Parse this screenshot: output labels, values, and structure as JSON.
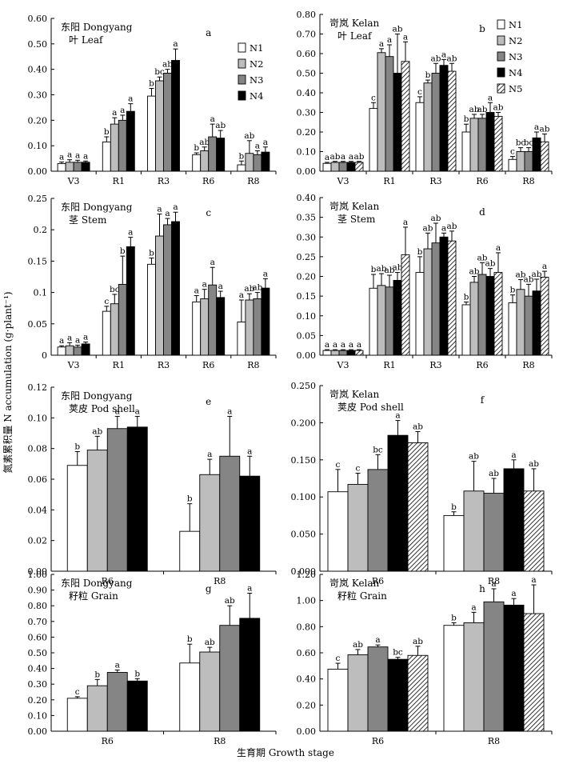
{
  "figure": {
    "ylabel": "氮素累积量 N accumulation (g·plant⁻¹)",
    "xlabel": "生育期 Growth stage"
  },
  "colors": {
    "N1": "#ffffff",
    "N2": "#bdbdbd",
    "N3": "#858585",
    "N4": "#000000",
    "N5": "hatch"
  },
  "chart_data": [
    {
      "id": "a",
      "type": "bar",
      "letter": "a",
      "title": [
        "东阳 Dongyang",
        "叶 Leaf"
      ],
      "categories": [
        "V3",
        "R1",
        "R3",
        "R6",
        "R8"
      ],
      "ylim": [
        0,
        0.6
      ],
      "yticks": [
        "0.00",
        "0.10",
        "0.20",
        "0.30",
        "0.40",
        "0.50",
        "0.60"
      ],
      "legend": [
        "N1",
        "N2",
        "N3",
        "N4"
      ],
      "series": [
        {
          "name": "N1",
          "values": [
            0.03,
            0.115,
            0.295,
            0.065,
            0.025
          ],
          "errors": [
            0.006,
            0.02,
            0.03,
            0.007,
            0.015
          ],
          "sig": [
            "a",
            "b",
            "b",
            "b",
            "b"
          ]
        },
        {
          "name": "N2",
          "values": [
            0.035,
            0.185,
            0.355,
            0.08,
            0.07
          ],
          "errors": [
            0.01,
            0.025,
            0.015,
            0.015,
            0.05
          ],
          "sig": [
            "a",
            "a",
            "bc",
            "ab",
            "ab"
          ]
        },
        {
          "name": "N3",
          "values": [
            0.035,
            0.2,
            0.385,
            0.135,
            0.065
          ],
          "errors": [
            0.008,
            0.02,
            0.015,
            0.05,
            0.015
          ],
          "sig": [
            "a",
            "a",
            "ab",
            "a",
            "a"
          ]
        },
        {
          "name": "N4",
          "values": [
            0.035,
            0.235,
            0.435,
            0.13,
            0.075
          ],
          "errors": [
            0.005,
            0.03,
            0.045,
            0.03,
            0.02
          ],
          "sig": [
            "a",
            "a",
            "a",
            "ab",
            "a"
          ]
        }
      ]
    },
    {
      "id": "b",
      "type": "bar",
      "letter": "b",
      "title": [
        "岢岚 Kelan",
        "叶 Leaf"
      ],
      "categories": [
        "V3",
        "R1",
        "R3",
        "R6",
        "R8"
      ],
      "ylim": [
        0,
        0.8
      ],
      "yticks": [
        "0.00",
        "0.10",
        "0.20",
        "0.30",
        "0.40",
        "0.50",
        "0.60",
        "0.70",
        "0.80"
      ],
      "legend": [
        "N1",
        "N2",
        "N3",
        "N4",
        "N5"
      ],
      "series": [
        {
          "name": "N1",
          "values": [
            0.04,
            0.32,
            0.35,
            0.2,
            0.06
          ],
          "errors": [
            0.005,
            0.03,
            0.03,
            0.04,
            0.015
          ],
          "sig": [
            "a",
            "c",
            "c",
            "b",
            "c"
          ]
        },
        {
          "name": "N2",
          "values": [
            0.045,
            0.605,
            0.45,
            0.27,
            0.1
          ],
          "errors": [
            0.005,
            0.02,
            0.015,
            0.02,
            0.02
          ],
          "sig": [
            "ab",
            "a",
            "b",
            "ab",
            "bc"
          ]
        },
        {
          "name": "N3",
          "values": [
            0.045,
            0.585,
            0.5,
            0.27,
            0.1
          ],
          "errors": [
            0.005,
            0.06,
            0.05,
            0.02,
            0.02
          ],
          "sig": [
            "a",
            "a",
            "ab",
            "ab",
            "bc"
          ]
        },
        {
          "name": "N4",
          "values": [
            0.045,
            0.5,
            0.54,
            0.3,
            0.17
          ],
          "errors": [
            0.005,
            0.2,
            0.03,
            0.05,
            0.03
          ],
          "sig": [
            "a",
            "ab",
            "a",
            "a",
            "a"
          ]
        },
        {
          "name": "N5",
          "values": [
            0.045,
            0.56,
            0.51,
            0.28,
            0.15
          ],
          "errors": [
            0.005,
            0.1,
            0.04,
            0.02,
            0.04
          ],
          "sig": [
            "ab",
            "a",
            "ab",
            "ab",
            "ab"
          ]
        }
      ]
    },
    {
      "id": "c",
      "type": "bar",
      "letter": "c",
      "title": [
        "东阳 Dongyang",
        "茎 Stem"
      ],
      "categories": [
        "V3",
        "R1",
        "R3",
        "R6",
        "R8"
      ],
      "ylim": [
        0,
        0.25
      ],
      "yticks": [
        "0",
        "0.05",
        "0.1",
        "0.15",
        "0.2",
        "0.25"
      ],
      "legend": [],
      "series": [
        {
          "name": "N1",
          "values": [
            0.013,
            0.07,
            0.145,
            0.085,
            0.053
          ],
          "errors": [
            0.002,
            0.008,
            0.01,
            0.01,
            0.035
          ],
          "sig": [
            "a",
            "c",
            "b",
            "a",
            "a"
          ]
        },
        {
          "name": "N2",
          "values": [
            0.015,
            0.082,
            0.19,
            0.09,
            0.088
          ],
          "errors": [
            0.005,
            0.015,
            0.035,
            0.015,
            0.01
          ],
          "sig": [
            "a",
            "bc",
            "a",
            "a",
            "ab"
          ]
        },
        {
          "name": "N3",
          "values": [
            0.013,
            0.113,
            0.208,
            0.112,
            0.09
          ],
          "errors": [
            0.003,
            0.045,
            0.01,
            0.028,
            0.01
          ],
          "sig": [
            "a",
            "b",
            "a",
            "a",
            "ab"
          ]
        },
        {
          "name": "N4",
          "values": [
            0.018,
            0.173,
            0.213,
            0.092,
            0.107
          ],
          "errors": [
            0.003,
            0.015,
            0.015,
            0.01,
            0.015
          ],
          "sig": [
            "a",
            "a",
            "a",
            "a",
            "a"
          ]
        }
      ]
    },
    {
      "id": "d",
      "type": "bar",
      "letter": "d",
      "title": [
        "岢岚 Kelan",
        "茎 Stem"
      ],
      "categories": [
        "V3",
        "R1",
        "R3",
        "R6",
        "R8"
      ],
      "ylim": [
        0,
        0.4
      ],
      "yticks": [
        "0.00",
        "0.05",
        "0.10",
        "0.15",
        "0.20",
        "0.25",
        "0.30",
        "0.35",
        "0.40"
      ],
      "legend": [],
      "series": [
        {
          "name": "N1",
          "values": [
            0.012,
            0.17,
            0.21,
            0.128,
            0.133
          ],
          "errors": [
            0.002,
            0.035,
            0.04,
            0.007,
            0.02
          ],
          "sig": [
            "a",
            "b",
            "b",
            "b",
            "b"
          ]
        },
        {
          "name": "N2",
          "values": [
            0.012,
            0.177,
            0.27,
            0.185,
            0.167
          ],
          "errors": [
            0.002,
            0.03,
            0.04,
            0.015,
            0.025
          ],
          "sig": [
            "a",
            "ab",
            "ab",
            "ab",
            "ab"
          ]
        },
        {
          "name": "N3",
          "values": [
            0.012,
            0.173,
            0.285,
            0.205,
            0.15
          ],
          "errors": [
            0.002,
            0.03,
            0.05,
            0.03,
            0.03
          ],
          "sig": [
            "a",
            "ab",
            "ab",
            "ab",
            "ab"
          ]
        },
        {
          "name": "N4",
          "values": [
            0.012,
            0.19,
            0.3,
            0.2,
            0.163
          ],
          "errors": [
            0.002,
            0.02,
            0.01,
            0.02,
            0.03
          ],
          "sig": [
            "a",
            "ab",
            "a",
            "ab",
            "ab"
          ]
        },
        {
          "name": "N5",
          "values": [
            0.012,
            0.255,
            0.29,
            0.21,
            0.198
          ],
          "errors": [
            0.002,
            0.07,
            0.025,
            0.05,
            0.015
          ],
          "sig": [
            "a",
            "a",
            "ab",
            "a",
            "a"
          ]
        }
      ]
    },
    {
      "id": "e",
      "type": "bar",
      "letter": "e",
      "title": [
        "东阳 Dongyang",
        "荚皮 Pod shell"
      ],
      "categories": [
        "R6",
        "R8"
      ],
      "ylim": [
        0,
        0.12
      ],
      "yticks": [
        "0.00",
        "0.02",
        "0.04",
        "0.06",
        "0.08",
        "0.10",
        "0.12"
      ],
      "legend": [],
      "series": [
        {
          "name": "N1",
          "values": [
            0.069,
            0.026
          ],
          "errors": [
            0.009,
            0.018
          ],
          "sig": [
            "b",
            "b"
          ]
        },
        {
          "name": "N2",
          "values": [
            0.079,
            0.063
          ],
          "errors": [
            0.009,
            0.01
          ],
          "sig": [
            "ab",
            "a"
          ]
        },
        {
          "name": "N3",
          "values": [
            0.093,
            0.075
          ],
          "errors": [
            0.008,
            0.026
          ],
          "sig": [
            "a",
            "a"
          ]
        },
        {
          "name": "N4",
          "values": [
            0.094,
            0.062
          ],
          "errors": [
            0.007,
            0.013
          ],
          "sig": [
            "a",
            "a"
          ]
        }
      ]
    },
    {
      "id": "f",
      "type": "bar",
      "letter": "f",
      "title": [
        "岢岚 Kelan",
        "荚皮 Pod shell"
      ],
      "categories": [
        "R6",
        "R8"
      ],
      "ylim": [
        0,
        0.25
      ],
      "yticks": [
        "0.000",
        "0.050",
        "0.100",
        "0.150",
        "0.200",
        "0.250"
      ],
      "legend": [],
      "series": [
        {
          "name": "N1",
          "values": [
            0.107,
            0.075
          ],
          "errors": [
            0.03,
            0.005
          ],
          "sig": [
            "c",
            "b"
          ]
        },
        {
          "name": "N2",
          "values": [
            0.117,
            0.108
          ],
          "errors": [
            0.015,
            0.04
          ],
          "sig": [
            "c",
            "ab"
          ]
        },
        {
          "name": "N3",
          "values": [
            0.137,
            0.105
          ],
          "errors": [
            0.02,
            0.02
          ],
          "sig": [
            "bc",
            "ab"
          ]
        },
        {
          "name": "N4",
          "values": [
            0.183,
            0.138
          ],
          "errors": [
            0.02,
            0.012
          ],
          "sig": [
            "a",
            "a"
          ]
        },
        {
          "name": "N5",
          "values": [
            0.173,
            0.108
          ],
          "errors": [
            0.015,
            0.03
          ],
          "sig": [
            "ab",
            "ab"
          ]
        }
      ]
    },
    {
      "id": "g",
      "type": "bar",
      "letter": "g",
      "title": [
        "东阳 Dongyang",
        "籽粒 Grain"
      ],
      "categories": [
        "R6",
        "R8"
      ],
      "ylim": [
        0,
        1.0
      ],
      "yticks": [
        "0.00",
        "0.10",
        "0.20",
        "0.30",
        "0.40",
        "0.50",
        "0.60",
        "0.70",
        "0.80",
        "0.90",
        "1.00"
      ],
      "legend": [],
      "series": [
        {
          "name": "N1",
          "values": [
            0.21,
            0.435
          ],
          "errors": [
            0.01,
            0.12
          ],
          "sig": [
            "c",
            "b"
          ]
        },
        {
          "name": "N2",
          "values": [
            0.29,
            0.505
          ],
          "errors": [
            0.04,
            0.03
          ],
          "sig": [
            "b",
            "ab"
          ]
        },
        {
          "name": "N3",
          "values": [
            0.375,
            0.675
          ],
          "errors": [
            0.015,
            0.125
          ],
          "sig": [
            "a",
            "ab"
          ]
        },
        {
          "name": "N4",
          "values": [
            0.32,
            0.72
          ],
          "errors": [
            0.015,
            0.16
          ],
          "sig": [
            "b",
            "a"
          ]
        }
      ]
    },
    {
      "id": "h",
      "type": "bar",
      "letter": "h",
      "title": [
        "岢岚 Kelan",
        "籽粒 Grain"
      ],
      "categories": [
        "R6",
        "R8"
      ],
      "ylim": [
        0,
        1.2
      ],
      "yticks": [
        "0.00",
        "0.20",
        "0.40",
        "0.60",
        "0.80",
        "1.00",
        "1.20"
      ],
      "legend": [],
      "series": [
        {
          "name": "N1",
          "values": [
            0.475,
            0.81
          ],
          "errors": [
            0.045,
            0.02
          ],
          "sig": [
            "c",
            "b"
          ]
        },
        {
          "name": "N2",
          "values": [
            0.585,
            0.83
          ],
          "errors": [
            0.04,
            0.08
          ],
          "sig": [
            "ab",
            "a"
          ]
        },
        {
          "name": "N3",
          "values": [
            0.645,
            0.99
          ],
          "errors": [
            0.015,
            0.1
          ],
          "sig": [
            "a",
            "a"
          ]
        },
        {
          "name": "N4",
          "values": [
            0.55,
            0.965
          ],
          "errors": [
            0.015,
            0.05
          ],
          "sig": [
            "bc",
            "a"
          ]
        },
        {
          "name": "N5",
          "values": [
            0.58,
            0.9
          ],
          "errors": [
            0.07,
            0.22
          ],
          "sig": [
            "ab",
            "a"
          ]
        }
      ]
    }
  ]
}
